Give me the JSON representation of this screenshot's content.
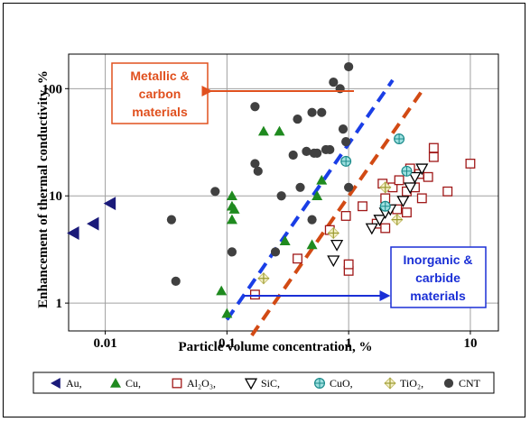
{
  "chart_data": {
    "type": "scatter",
    "xlabel": "Particle volume concentration, %",
    "ylabel": "Enhancement of thermal conductivity, %",
    "x_scale": "log",
    "y_scale": "log",
    "xlim": [
      0.005,
      17
    ],
    "ylim": [
      0.55,
      210
    ],
    "x_ticks": [
      0.01,
      0.1,
      1,
      10
    ],
    "x_tick_labels": [
      "0.01",
      "0.1",
      "1",
      "10"
    ],
    "y_ticks": [
      1,
      10,
      100
    ],
    "y_tick_labels": [
      "1",
      "10",
      "100"
    ],
    "grid": true,
    "legend_position": "bottom",
    "annotations": {
      "top_left": {
        "line1": "Metallic &",
        "line2": "carbon",
        "line3": "materials",
        "color": "#e0501e"
      },
      "bottom_right": {
        "line1": "Inorganic &",
        "line2": "carbide",
        "line3": "materials",
        "color": "#1a2fd6"
      }
    },
    "trend_lines": [
      {
        "color": "#1a3ee6",
        "x": [
          0.1,
          2.3
        ],
        "y": [
          0.7,
          120
        ]
      },
      {
        "color": "#d24a14",
        "x": [
          0.16,
          4.0
        ],
        "y": [
          0.5,
          95
        ]
      }
    ],
    "series": [
      {
        "name": "Au",
        "marker": "triangle-left",
        "color": "#1a1a7a",
        "x": [
          0.0055,
          0.008,
          0.011
        ],
        "y": [
          4.5,
          5.5,
          8.5
        ]
      },
      {
        "name": "Cu",
        "marker": "triangle-up",
        "color": "#1f8a1f",
        "x": [
          0.09,
          0.1,
          0.11,
          0.11,
          0.11,
          0.115,
          0.2,
          0.27,
          0.3,
          0.5,
          0.55,
          0.6
        ],
        "y": [
          1.3,
          0.8,
          6,
          8,
          10,
          7.5,
          40,
          40,
          3.8,
          3.5,
          10,
          14
        ]
      },
      {
        "name": "Al₂O₃",
        "marker": "square-open",
        "color": "#a01818",
        "x": [
          0.17,
          0.38,
          0.7,
          0.95,
          1.0,
          1.0,
          1.3,
          1.7,
          1.9,
          2.0,
          2.0,
          2.3,
          2.5,
          2.6,
          3.0,
          3.0,
          3.2,
          3.5,
          3.8,
          4.0,
          4.5,
          5.0,
          5.0,
          6.5,
          10.0
        ],
        "y": [
          1.2,
          2.6,
          4.8,
          6.5,
          2.0,
          2.3,
          8,
          5.5,
          13,
          9.5,
          5,
          12,
          7.5,
          14,
          11,
          7,
          18,
          12,
          16,
          9.5,
          15,
          23,
          28,
          11,
          20
        ]
      },
      {
        "name": "SiC",
        "marker": "triangle-down-open",
        "color": "#000000",
        "x": [
          0.75,
          0.8,
          1.55,
          1.8,
          2.0,
          2.2,
          2.8,
          3.2,
          3.5,
          4.0
        ],
        "y": [
          2.5,
          3.5,
          5,
          6,
          7,
          7.5,
          9,
          12,
          15,
          18
        ]
      },
      {
        "name": "CuO",
        "marker": "circle-plus",
        "color": "#1a8a8a",
        "x": [
          0.95,
          2.0,
          2.6,
          3.0
        ],
        "y": [
          21,
          8,
          34,
          17
        ]
      },
      {
        "name": "TiO₂",
        "marker": "plus-diamond",
        "color": "#9a9a30",
        "x": [
          0.2,
          0.75,
          2.0,
          2.5
        ],
        "y": [
          1.7,
          4.5,
          12,
          6
        ]
      },
      {
        "name": "CNT",
        "marker": "circle",
        "color": "#404040",
        "x": [
          0.035,
          0.038,
          0.08,
          0.11,
          0.17,
          0.17,
          0.18,
          0.25,
          0.28,
          0.35,
          0.38,
          0.4,
          0.45,
          0.5,
          0.5,
          0.52,
          0.55,
          0.6,
          0.65,
          0.7,
          0.75,
          0.85,
          0.9,
          0.95,
          1.0,
          1.0
        ],
        "y": [
          6,
          1.6,
          11,
          3,
          20,
          68,
          17,
          3,
          10,
          24,
          52,
          12,
          26,
          60,
          6,
          25,
          25,
          60,
          27,
          27,
          115,
          100,
          42,
          32,
          12,
          160
        ]
      }
    ]
  }
}
